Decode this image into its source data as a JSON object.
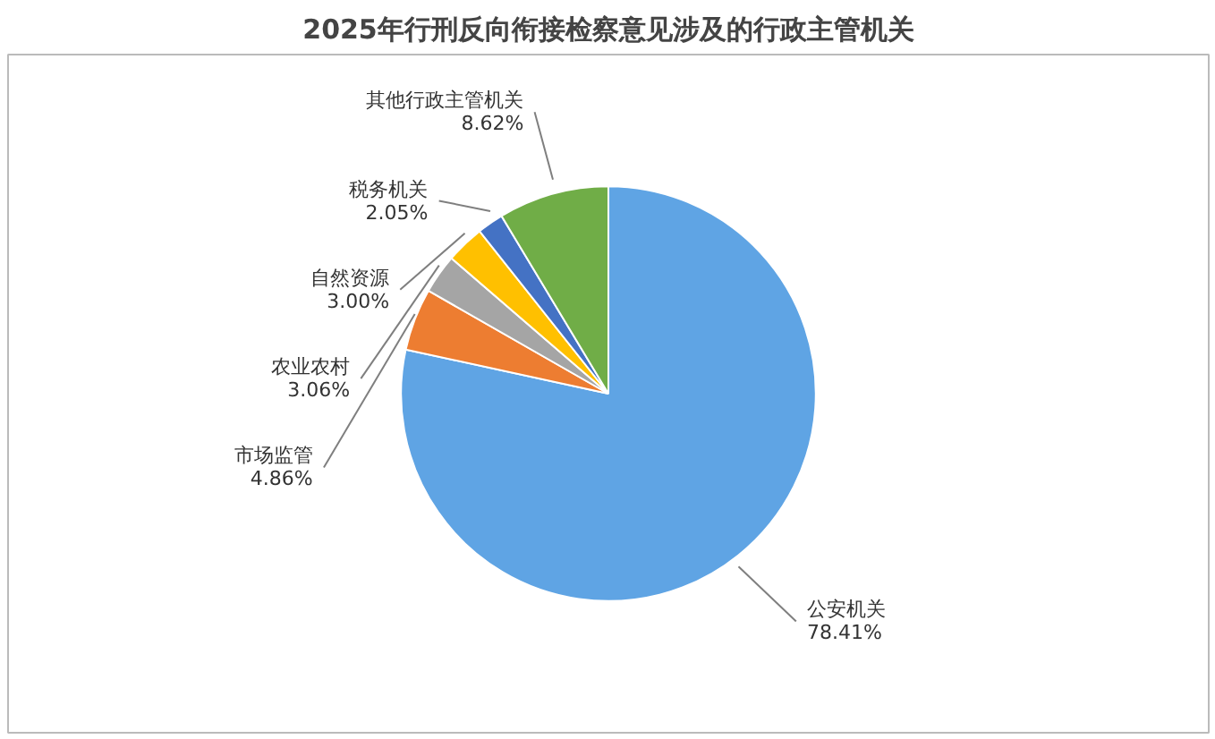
{
  "chart_data": {
    "type": "pie",
    "title": "2025年行刑反向衔接检察意见涉及的行政主管机关",
    "categories": [
      "公安机关",
      "市场监管",
      "农业农村",
      "自然资源",
      "税务机关",
      "其他行政主管机关"
    ],
    "values": [
      78.41,
      4.86,
      3.06,
      3.0,
      2.05,
      8.62
    ],
    "colors": [
      "#5fa4e4",
      "#ed7d31",
      "#a5a5a5",
      "#ffc000",
      "#4472c4",
      "#70ad47"
    ],
    "value_labels": [
      "78.41%",
      "4.86%",
      "3.06%",
      "3.00%",
      "2.05%",
      "8.62%"
    ]
  }
}
